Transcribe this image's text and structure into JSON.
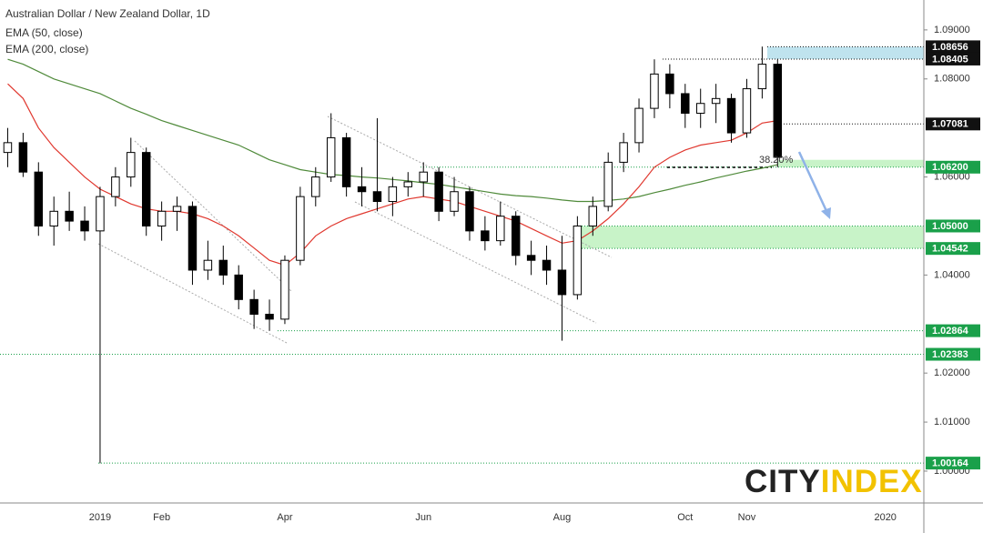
{
  "chart_data": {
    "type": "candlestick",
    "title": "Australian Dollar / New Zealand Dollar, 1D",
    "categories": [
      null,
      null,
      null,
      null,
      null,
      null,
      "2019",
      null,
      null,
      null,
      "Feb",
      null,
      null,
      null,
      null,
      null,
      null,
      null,
      "Apr",
      null,
      null,
      null,
      null,
      null,
      null,
      null,
      null,
      "Jun",
      null,
      null,
      null,
      null,
      null,
      null,
      null,
      null,
      "Aug",
      null,
      null,
      null,
      null,
      null,
      null,
      null,
      "Oct",
      null,
      null,
      null,
      "Nov",
      null,
      null,
      null,
      null,
      null,
      null,
      null,
      null,
      "2020",
      null,
      null
    ],
    "open": [
      1.065,
      1.067,
      1.061,
      1.05,
      1.053,
      1.051,
      1.049,
      1.056,
      1.06,
      1.065,
      1.05,
      1.053,
      1.054,
      1.041,
      1.043,
      1.04,
      1.035,
      1.032,
      1.031,
      1.043,
      1.056,
      1.06,
      1.068,
      1.058,
      1.057,
      1.055,
      1.058,
      1.059,
      1.061,
      1.053,
      1.057,
      1.049,
      1.047,
      1.052,
      1.044,
      1.043,
      1.041,
      1.036,
      1.05,
      1.054,
      1.063,
      1.067,
      1.074,
      1.081,
      1.077,
      1.073,
      1.075,
      1.076,
      1.069,
      1.078,
      1.083,
      null,
      null,
      null,
      null,
      null,
      null,
      null,
      null,
      null
    ],
    "high": [
      1.07,
      1.069,
      1.063,
      1.056,
      1.057,
      1.054,
      1.058,
      1.062,
      1.068,
      1.066,
      1.055,
      1.056,
      1.055,
      1.047,
      1.046,
      1.042,
      1.037,
      1.035,
      1.044,
      1.058,
      1.062,
      1.073,
      1.069,
      1.062,
      1.072,
      1.06,
      1.061,
      1.063,
      1.062,
      1.06,
      1.058,
      1.052,
      1.055,
      1.053,
      1.047,
      1.046,
      1.048,
      1.052,
      1.056,
      1.065,
      1.069,
      1.076,
      1.084,
      1.083,
      1.079,
      1.078,
      1.079,
      1.077,
      1.08,
      1.0866,
      1.084,
      null,
      null,
      null,
      null,
      null,
      null,
      null,
      null,
      null
    ],
    "low": [
      1.062,
      1.06,
      1.048,
      1.046,
      1.049,
      1.047,
      1.0016,
      1.054,
      1.058,
      1.048,
      1.047,
      1.049,
      1.038,
      1.039,
      1.038,
      1.033,
      1.029,
      1.0286,
      1.03,
      1.042,
      1.054,
      1.059,
      1.056,
      1.054,
      1.053,
      1.052,
      1.056,
      1.056,
      1.051,
      1.052,
      1.047,
      1.045,
      1.046,
      1.042,
      1.04,
      1.038,
      1.0266,
      1.035,
      1.048,
      1.053,
      1.061,
      1.065,
      1.072,
      1.074,
      1.07,
      1.07,
      1.071,
      1.067,
      1.068,
      1.076,
      1.062,
      null,
      null,
      null,
      null,
      null,
      null,
      null,
      null,
      null
    ],
    "close": [
      1.067,
      1.061,
      1.05,
      1.053,
      1.051,
      1.049,
      1.056,
      1.06,
      1.065,
      1.05,
      1.053,
      1.054,
      1.041,
      1.043,
      1.04,
      1.035,
      1.032,
      1.031,
      1.043,
      1.056,
      1.06,
      1.068,
      1.058,
      1.057,
      1.055,
      1.058,
      1.059,
      1.061,
      1.053,
      1.057,
      1.049,
      1.047,
      1.052,
      1.044,
      1.043,
      1.041,
      1.036,
      1.05,
      1.054,
      1.063,
      1.067,
      1.074,
      1.081,
      1.077,
      1.073,
      1.075,
      1.076,
      1.069,
      1.078,
      1.083,
      1.064,
      null,
      null,
      null,
      null,
      null,
      null,
      null,
      null,
      null
    ],
    "series": [
      {
        "name": "EMA (50, close)",
        "color": "#e0382f",
        "values": [
          1.079,
          1.076,
          1.07,
          1.066,
          1.063,
          1.06,
          1.0575,
          1.056,
          1.0545,
          1.0535,
          1.053,
          1.053,
          1.0525,
          1.0515,
          1.05,
          1.048,
          1.0455,
          1.043,
          1.042,
          1.0445,
          1.048,
          1.05,
          1.0515,
          1.0525,
          1.0535,
          1.0545,
          1.0555,
          1.056,
          1.0555,
          1.055,
          1.054,
          1.053,
          1.052,
          1.051,
          1.0495,
          1.048,
          1.0465,
          1.047,
          1.049,
          1.0515,
          1.0545,
          1.058,
          1.062,
          1.064,
          1.0655,
          1.0665,
          1.067,
          1.0675,
          1.069,
          1.071,
          1.0715,
          null,
          null,
          null,
          null,
          null,
          null,
          null,
          null,
          null
        ]
      },
      {
        "name": "EMA (200, close)",
        "color": "#4f8a3a",
        "values": [
          1.084,
          1.083,
          1.0815,
          1.08,
          1.079,
          1.078,
          1.077,
          1.0755,
          1.074,
          1.0728,
          1.0715,
          1.0705,
          1.0695,
          1.0685,
          1.0675,
          1.0665,
          1.065,
          1.0635,
          1.0625,
          1.0615,
          1.061,
          1.0605,
          1.0603,
          1.06,
          1.0598,
          1.0595,
          1.0592,
          1.0588,
          1.0585,
          1.058,
          1.0575,
          1.057,
          1.0565,
          1.0562,
          1.056,
          1.0557,
          1.0553,
          1.055,
          1.055,
          1.0552,
          1.0555,
          1.056,
          1.0568,
          1.0575,
          1.0583,
          1.059,
          1.0598,
          1.0605,
          1.0612,
          1.0618,
          1.0625,
          null,
          null,
          null,
          null,
          null,
          null,
          null,
          null,
          null
        ]
      }
    ],
    "ylim": [
      0.9935,
      1.0961
    ],
    "yticks": [
      {
        "value": 1.0,
        "label": "1.00000"
      },
      {
        "value": 1.01,
        "label": "1.01000"
      },
      {
        "value": 1.02,
        "label": "1.02000"
      },
      {
        "value": 1.04,
        "label": "1.04000"
      },
      {
        "value": 1.06,
        "label": "1.06000"
      },
      {
        "value": 1.08,
        "label": "1.08000"
      },
      {
        "value": 1.09,
        "label": "1.09000"
      }
    ],
    "levels": [
      {
        "value": 1.08656,
        "label": "1.08656",
        "color": "#111111"
      },
      {
        "value": 1.08405,
        "label": "1.08405",
        "color": "#111111"
      },
      {
        "value": 1.07081,
        "label": "1.07081",
        "color": "#111111"
      },
      {
        "value": 1.062,
        "label": "1.06200",
        "color": "#1aa04a"
      },
      {
        "value": 1.05,
        "label": "1.05000",
        "color": "#1aa04a"
      },
      {
        "value": 1.04542,
        "label": "1.04542",
        "color": "#1aa04a"
      },
      {
        "value": 1.02864,
        "label": "1.02864",
        "color": "#1aa04a"
      },
      {
        "value": 1.02383,
        "label": "1.02383",
        "color": "#1aa04a"
      },
      {
        "value": 1.00164,
        "label": "1.00164",
        "color": "#1aa04a"
      }
    ],
    "zones": [
      {
        "low": 1.08405,
        "high": 1.08656,
        "color": "#bfe3ee"
      },
      {
        "low": 1.062,
        "high": 1.0635,
        "color": "#c8f3c8"
      },
      {
        "low": 1.04542,
        "high": 1.05,
        "color": "#c8f3c8"
      }
    ],
    "annotation": "38.20%",
    "logo": [
      "CITY",
      "INDEX"
    ]
  }
}
